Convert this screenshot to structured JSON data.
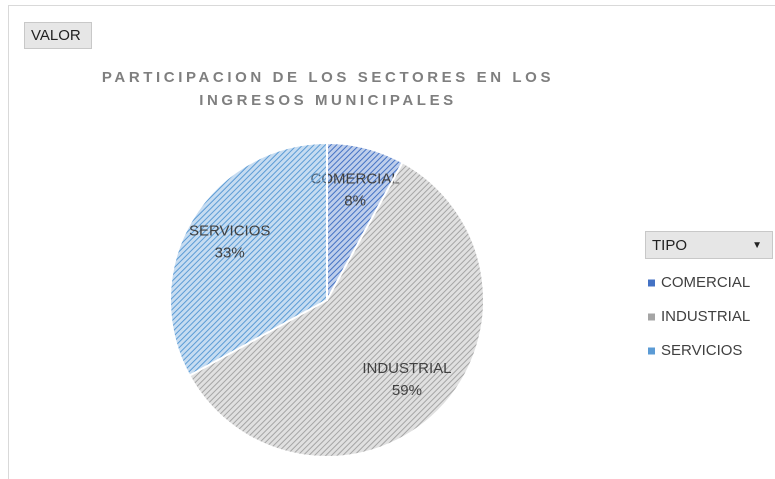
{
  "chart_data": {
    "type": "pie",
    "value_field": "VALOR",
    "title": "PARTICIPACION DE LOS SECTORES EN LOS INGRESOS MUNICIPALES",
    "legend_title": "TIPO",
    "categories": [
      "COMERCIAL",
      "INDUSTRIAL",
      "SERVICIOS"
    ],
    "values": [
      8,
      59,
      33
    ],
    "value_labels": [
      "8%",
      "59%",
      "33%"
    ],
    "colors": [
      "#4472c4",
      "#a5a5a5",
      "#5b9bd5"
    ],
    "legend": "right"
  }
}
